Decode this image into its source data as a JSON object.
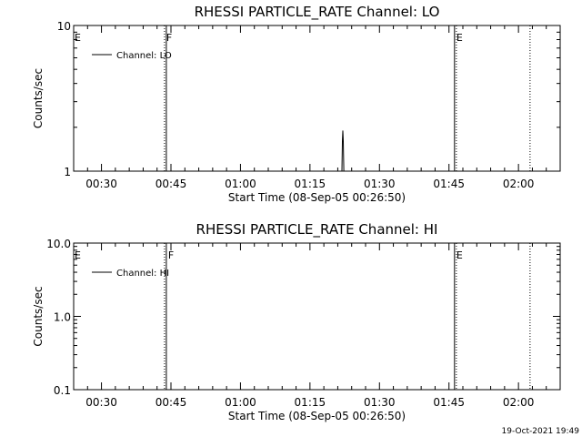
{
  "colors": {
    "background": "#ffffff",
    "foreground": "#000000"
  },
  "timestamp": "19-Oct-2021 19:49",
  "chart_data": [
    {
      "type": "line",
      "title": "RHESSI PARTICLE_RATE Channel: LO",
      "xlabel": "Start Time (08-Sep-05 00:26:50)",
      "ylabel": "Counts/sec",
      "y_scale": "log",
      "ylim": [
        1,
        10
      ],
      "y_ticks": [
        1,
        10
      ],
      "y_tick_labels": [
        "1",
        "10"
      ],
      "xlim": [
        "00:24",
        "02:09"
      ],
      "x_ticks": [
        "00:30",
        "00:45",
        "01:00",
        "01:15",
        "01:30",
        "01:45",
        "02:00"
      ],
      "legend": {
        "position": "top-left",
        "entries": [
          "Channel: LO"
        ]
      },
      "event_lines": [
        {
          "time": "00:43.6",
          "style": "dotted",
          "label": "F"
        },
        {
          "time": "00:44.0",
          "style": "solid"
        },
        {
          "time": "01:46.2",
          "style": "solid",
          "label": "E"
        },
        {
          "time": "01:46.6",
          "style": "dotted"
        },
        {
          "time": "02:02.5",
          "style": "dotted"
        }
      ],
      "edge_labels": [
        {
          "label": "E",
          "position": "left"
        }
      ],
      "series": [
        {
          "name": "Channel: LO",
          "points": [
            {
              "x": "01:21.9",
              "y": 1.0
            },
            {
              "x": "01:22.0",
              "y": 1.6
            },
            {
              "x": "01:22.1",
              "y": 1.9
            },
            {
              "x": "01:22.2",
              "y": 1.6
            },
            {
              "x": "01:22.3",
              "y": 1.0
            }
          ]
        }
      ]
    },
    {
      "type": "line",
      "title": "RHESSI PARTICLE_RATE Channel: HI",
      "xlabel": "Start Time (08-Sep-05 00:26:50)",
      "ylabel": "Counts/sec",
      "y_scale": "log",
      "ylim": [
        0.1,
        10
      ],
      "y_ticks": [
        0.1,
        1,
        10
      ],
      "y_tick_labels": [
        "0.1",
        "1.0",
        "10.0"
      ],
      "xlim": [
        "00:24",
        "02:09"
      ],
      "x_ticks": [
        "00:30",
        "00:45",
        "01:00",
        "01:15",
        "01:30",
        "01:45",
        "02:00"
      ],
      "legend": {
        "position": "top-left",
        "entries": [
          "Channel: HI"
        ]
      },
      "event_lines": [
        {
          "time": "00:43.6",
          "style": "dotted"
        },
        {
          "time": "00:44.0",
          "style": "solid",
          "label": "F"
        },
        {
          "time": "01:46.2",
          "style": "solid",
          "label": "E"
        },
        {
          "time": "01:46.6",
          "style": "dotted"
        },
        {
          "time": "02:02.5",
          "style": "dotted"
        }
      ],
      "edge_labels": [
        {
          "label": "E",
          "position": "left"
        }
      ],
      "series": [
        {
          "name": "Channel: HI",
          "points": []
        }
      ]
    }
  ]
}
